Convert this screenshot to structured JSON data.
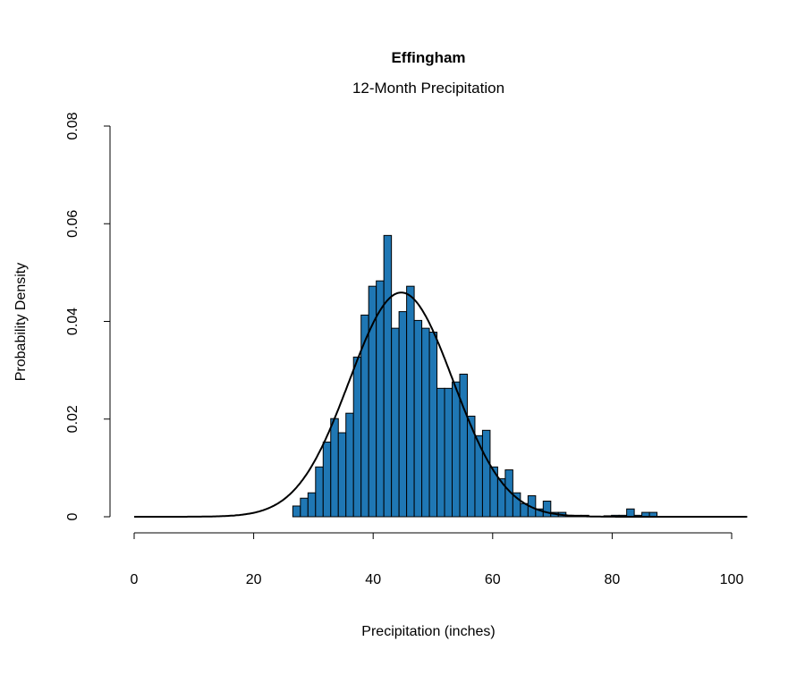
{
  "chart_data": {
    "type": "bar",
    "title": "Effingham",
    "subtitle": "12-Month Precipitation",
    "xlabel": "Precipitation (inches)",
    "ylabel": "Probability Density",
    "xlim": [
      0,
      100
    ],
    "ylim": [
      0,
      0.08
    ],
    "x_ticks": [
      "0",
      "20",
      "40",
      "60",
      "80",
      "100"
    ],
    "y_ticks": [
      "0",
      "0.02",
      "0.04",
      "0.06",
      "0.08"
    ],
    "grid": false,
    "bar_color": "#1f77b4",
    "bin_start": 26.55,
    "bin_width": 1.27,
    "values": [
      0.0022,
      0.0038,
      0.0049,
      0.0102,
      0.0153,
      0.0201,
      0.0172,
      0.0212,
      0.0327,
      0.0413,
      0.0472,
      0.0483,
      0.0576,
      0.0386,
      0.042,
      0.0472,
      0.0402,
      0.0386,
      0.0378,
      0.0263,
      0.0263,
      0.0276,
      0.0292,
      0.0206,
      0.0166,
      0.0177,
      0.0102,
      0.0078,
      0.0096,
      0.0049,
      0.0027,
      0.0043,
      0.0016,
      0.0032,
      0.0009,
      0.0009,
      0.0003,
      0.0003,
      0.0003,
      0,
      0,
      0.0002,
      0.0003,
      0.0003,
      0.0016,
      0.0003,
      0.0009,
      0.0009
    ],
    "fit_curve": {
      "type": "normal",
      "mean": 44.7,
      "sd": 8.69,
      "x_range": [
        0,
        102.7
      ],
      "color": "#000000"
    }
  }
}
